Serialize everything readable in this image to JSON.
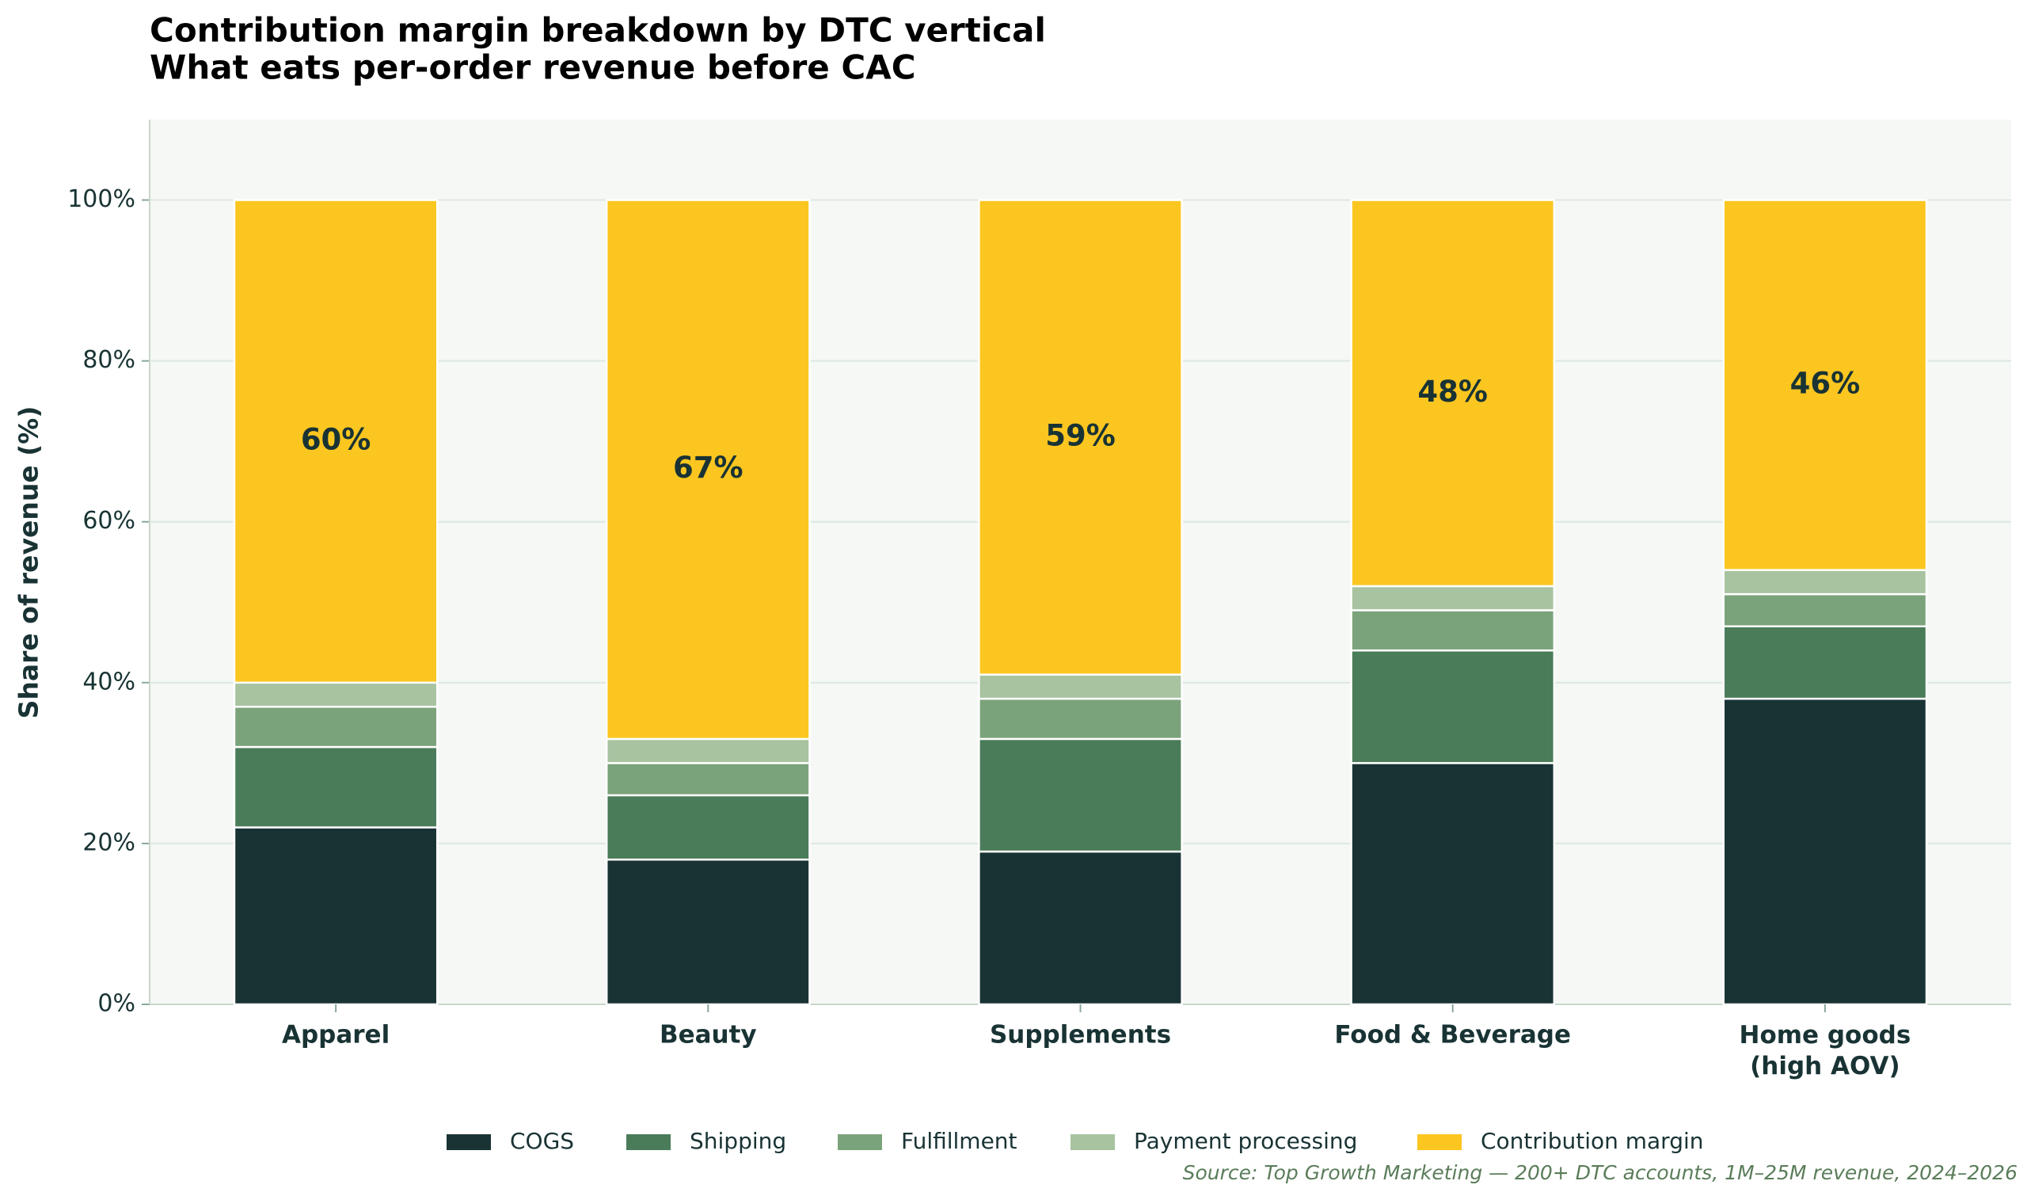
{
  "chart_data": {
    "type": "stacked_bar",
    "title": "Contribution margin breakdown by DTC vertical",
    "subtitle": "What eats per-order revenue before CAC",
    "y_label": "Share of revenue (%)",
    "source": "Source: Top Growth Marketing — 200+ DTC accounts, 1M–25M revenue, 2024–2026",
    "categories": [
      "Apparel",
      "Beauty",
      "Supplements",
      "Food & Beverage",
      "Home goods\n(high AOV)"
    ],
    "series": [
      {
        "name": "COGS",
        "color": "#193334",
        "values": [
          22,
          18,
          19,
          30,
          38
        ]
      },
      {
        "name": "Shipping",
        "color": "#4a7c59",
        "values": [
          10,
          8,
          14,
          14,
          9
        ]
      },
      {
        "name": "Fulfillment",
        "color": "#7ba37b",
        "values": [
          5,
          4,
          5,
          5,
          4
        ]
      },
      {
        "name": "Payment processing",
        "color": "#a8c3a0",
        "values": [
          3,
          3,
          3,
          3,
          3
        ]
      },
      {
        "name": "Contribution margin",
        "color": "#fcc620",
        "values": [
          60,
          67,
          59,
          48,
          46
        ],
        "value_labels": [
          "60%",
          "67%",
          "59%",
          "48%",
          "46%"
        ]
      }
    ],
    "ylim": [
      0,
      110
    ],
    "yticks": [
      {
        "value": 0,
        "label": "0%"
      },
      {
        "value": 20,
        "label": "20%"
      },
      {
        "value": 40,
        "label": "40%"
      },
      {
        "value": 60,
        "label": "60%"
      },
      {
        "value": 80,
        "label": "80%"
      },
      {
        "value": 100,
        "label": "100%"
      }
    ],
    "grid": true
  }
}
